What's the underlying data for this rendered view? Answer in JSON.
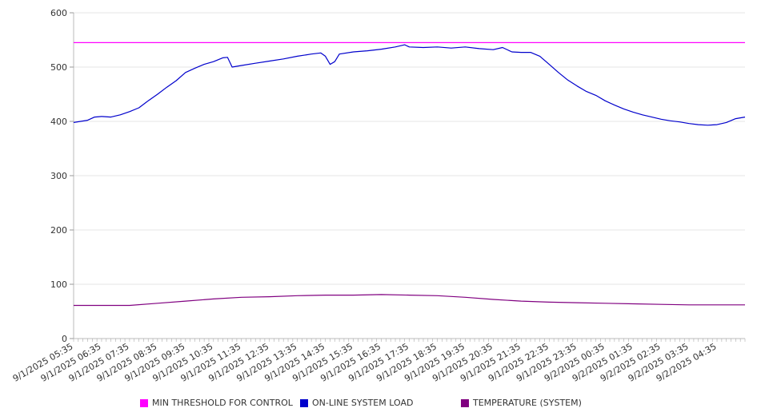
{
  "chart_data": {
    "type": "line",
    "ylim": [
      0,
      600
    ],
    "yticks": [
      0,
      100,
      200,
      300,
      400,
      500,
      600
    ],
    "grid": true,
    "legend_position": "bottom",
    "x_tick_labels": [
      "9/1/2025 05:35",
      "9/1/2025 06:35",
      "9/1/2025 07:35",
      "9/1/2025 08:35",
      "9/1/2025 09:35",
      "9/1/2025 10:35",
      "9/1/2025 11:35",
      "9/1/2025 12:35",
      "9/1/2025 13:35",
      "9/1/2025 14:35",
      "9/1/2025 15:35",
      "9/1/2025 16:35",
      "9/1/2025 17:35",
      "9/1/2025 18:35",
      "9/1/2025 19:35",
      "9/1/2025 20:35",
      "9/1/2025 21:35",
      "9/1/2025 22:35",
      "9/1/2025 23:35",
      "9/2/2025 00:35",
      "9/2/2025 01:35",
      "9/2/2025 02:35",
      "9/2/2025 03:35",
      "9/2/2025 04:35"
    ],
    "x_range": [
      "9/1/2025 05:35",
      "9/2/2025 05:35"
    ],
    "series": [
      {
        "name": "MIN THRESHOLD FOR CONTROL",
        "color": "#ff00ff",
        "points": [
          [
            "9/1/2025 05:35",
            545
          ],
          [
            "9/2/2025 05:35",
            545
          ]
        ]
      },
      {
        "name": "ON-LINE SYSTEM LOAD",
        "color": "#0000cc",
        "points": [
          [
            "9/1/2025 05:35",
            398
          ],
          [
            "9/1/2025 06:05",
            402
          ],
          [
            "9/1/2025 06:20",
            408
          ],
          [
            "9/1/2025 06:35",
            409
          ],
          [
            "9/1/2025 06:55",
            408
          ],
          [
            "9/1/2025 07:15",
            412
          ],
          [
            "9/1/2025 07:35",
            418
          ],
          [
            "9/1/2025 07:55",
            425
          ],
          [
            "9/1/2025 08:15",
            438
          ],
          [
            "9/1/2025 08:35",
            450
          ],
          [
            "9/1/2025 08:55",
            463
          ],
          [
            "9/1/2025 09:15",
            475
          ],
          [
            "9/1/2025 09:35",
            490
          ],
          [
            "9/1/2025 09:55",
            498
          ],
          [
            "9/1/2025 10:15",
            505
          ],
          [
            "9/1/2025 10:35",
            510
          ],
          [
            "9/1/2025 10:55",
            517
          ],
          [
            "9/1/2025 11:05",
            518
          ],
          [
            "9/1/2025 11:15",
            500
          ],
          [
            "9/1/2025 11:35",
            503
          ],
          [
            "9/1/2025 12:05",
            507
          ],
          [
            "9/1/2025 12:35",
            511
          ],
          [
            "9/1/2025 13:05",
            515
          ],
          [
            "9/1/2025 13:35",
            520
          ],
          [
            "9/1/2025 14:05",
            524
          ],
          [
            "9/1/2025 14:25",
            526
          ],
          [
            "9/1/2025 14:35",
            520
          ],
          [
            "9/1/2025 14:45",
            505
          ],
          [
            "9/1/2025 14:55",
            510
          ],
          [
            "9/1/2025 15:05",
            524
          ],
          [
            "9/1/2025 15:35",
            528
          ],
          [
            "9/1/2025 16:05",
            530
          ],
          [
            "9/1/2025 16:35",
            533
          ],
          [
            "9/1/2025 17:05",
            537
          ],
          [
            "9/1/2025 17:25",
            541
          ],
          [
            "9/1/2025 17:35",
            537
          ],
          [
            "9/1/2025 18:05",
            536
          ],
          [
            "9/1/2025 18:35",
            537
          ],
          [
            "9/1/2025 19:05",
            535
          ],
          [
            "9/1/2025 19:35",
            537
          ],
          [
            "9/1/2025 20:05",
            534
          ],
          [
            "9/1/2025 20:35",
            532
          ],
          [
            "9/1/2025 20:55",
            536
          ],
          [
            "9/1/2025 21:15",
            528
          ],
          [
            "9/1/2025 21:35",
            527
          ],
          [
            "9/1/2025 21:55",
            527
          ],
          [
            "9/1/2025 22:15",
            520
          ],
          [
            "9/1/2025 22:35",
            505
          ],
          [
            "9/1/2025 22:55",
            490
          ],
          [
            "9/1/2025 23:15",
            476
          ],
          [
            "9/1/2025 23:35",
            465
          ],
          [
            "9/1/2025 23:55",
            455
          ],
          [
            "9/2/2025 00:15",
            448
          ],
          [
            "9/2/2025 00:35",
            438
          ],
          [
            "9/2/2025 00:55",
            430
          ],
          [
            "9/2/2025 01:15",
            423
          ],
          [
            "9/2/2025 01:35",
            417
          ],
          [
            "9/2/2025 01:55",
            412
          ],
          [
            "9/2/2025 02:15",
            408
          ],
          [
            "9/2/2025 02:35",
            404
          ],
          [
            "9/2/2025 02:55",
            401
          ],
          [
            "9/2/2025 03:15",
            399
          ],
          [
            "9/2/2025 03:35",
            396
          ],
          [
            "9/2/2025 03:55",
            394
          ],
          [
            "9/2/2025 04:15",
            393
          ],
          [
            "9/2/2025 04:35",
            394
          ],
          [
            "9/2/2025 04:55",
            398
          ],
          [
            "9/2/2025 05:15",
            405
          ],
          [
            "9/2/2025 05:35",
            408
          ]
        ]
      },
      {
        "name": "TEMPERATURE (SYSTEM)",
        "color": "#800080",
        "points": [
          [
            "9/1/2025 05:35",
            61
          ],
          [
            "9/1/2025 06:35",
            61
          ],
          [
            "9/1/2025 07:35",
            61
          ],
          [
            "9/1/2025 08:35",
            65
          ],
          [
            "9/1/2025 09:35",
            69
          ],
          [
            "9/1/2025 10:35",
            73
          ],
          [
            "9/1/2025 11:35",
            76
          ],
          [
            "9/1/2025 12:35",
            77
          ],
          [
            "9/1/2025 13:35",
            79
          ],
          [
            "9/1/2025 14:35",
            80
          ],
          [
            "9/1/2025 15:35",
            80
          ],
          [
            "9/1/2025 16:35",
            81
          ],
          [
            "9/1/2025 17:35",
            80
          ],
          [
            "9/1/2025 18:35",
            79
          ],
          [
            "9/1/2025 19:35",
            76
          ],
          [
            "9/1/2025 20:35",
            72
          ],
          [
            "9/1/2025 21:35",
            69
          ],
          [
            "9/1/2025 22:35",
            67
          ],
          [
            "9/1/2025 23:35",
            66
          ],
          [
            "9/2/2025 00:35",
            65
          ],
          [
            "9/2/2025 01:35",
            64
          ],
          [
            "9/2/2025 02:35",
            63
          ],
          [
            "9/2/2025 03:35",
            62
          ],
          [
            "9/2/2025 04:35",
            62
          ],
          [
            "9/2/2025 05:35",
            62
          ]
        ]
      }
    ]
  },
  "legend": {
    "items": [
      {
        "label": "MIN THRESHOLD FOR CONTROL",
        "color": "#ff00ff"
      },
      {
        "label": "ON-LINE SYSTEM LOAD",
        "color": "#0000cc"
      },
      {
        "label": "TEMPERATURE (SYSTEM)",
        "color": "#800080"
      }
    ]
  }
}
